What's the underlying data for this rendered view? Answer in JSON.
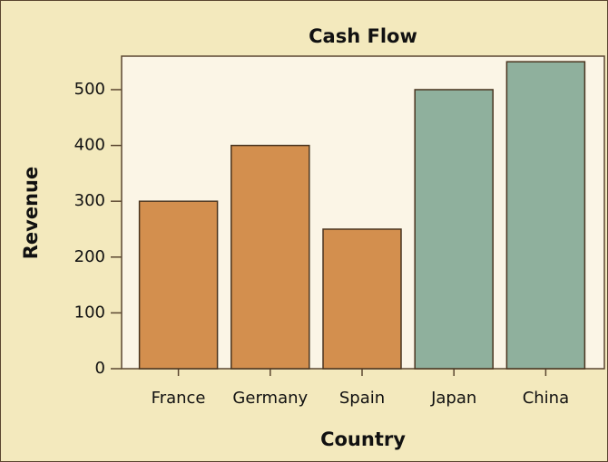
{
  "chart_data": {
    "type": "bar",
    "title": "Cash Flow",
    "x_label": "Country",
    "y_label": "Revenue",
    "categories": [
      "France",
      "Germany",
      "Spain",
      "Japan",
      "China"
    ],
    "values": [
      300,
      400,
      250,
      500,
      550
    ],
    "colors": [
      "#d38f4e",
      "#d38f4e",
      "#d38f4e",
      "#8fb09d",
      "#8fb09d"
    ],
    "ylim": [
      0,
      560
    ],
    "yticks": [
      0,
      100,
      200,
      300,
      400,
      500
    ],
    "grid": false
  }
}
